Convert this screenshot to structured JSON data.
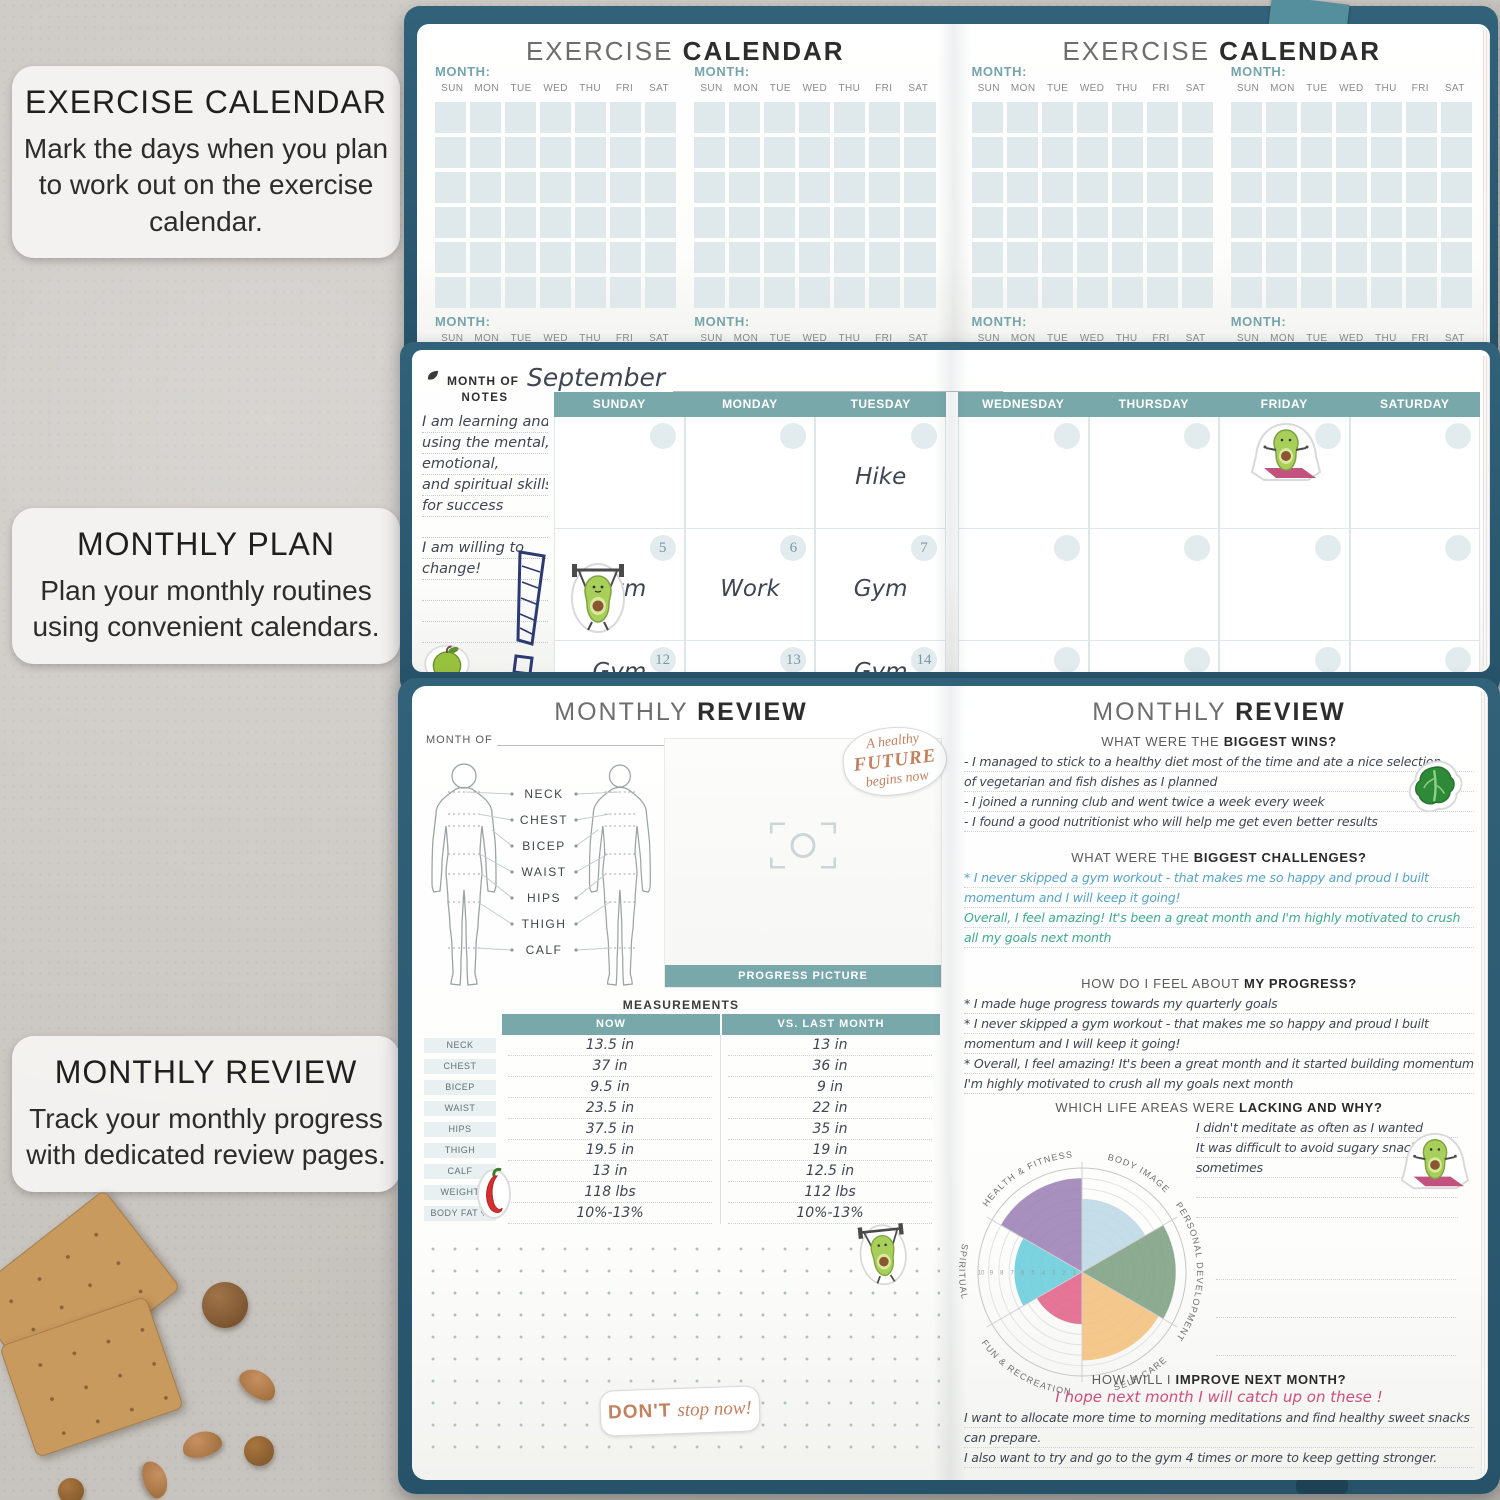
{
  "callouts": [
    {
      "title": "EXERCISE CALENDAR",
      "body": "Mark the days when you plan to work out on the exercise calendar."
    },
    {
      "title": "MONTHLY PLAN",
      "body": "Plan your monthly routines using convenient calendars."
    },
    {
      "title": "MONTHLY REVIEW",
      "body": "Track your monthly progress with dedicated review pages."
    }
  ],
  "exercise_spread": {
    "title_light": "EXERCISE",
    "title_bold": "CALENDAR",
    "month_label": "MONTH:",
    "day_headers": [
      "SUN",
      "MON",
      "TUE",
      "WED",
      "THU",
      "FRI",
      "SAT"
    ]
  },
  "plan_spread": {
    "month_of_label": "MONTH OF",
    "month_value": "September",
    "notes_label": "NOTES",
    "notes_lines": [
      "I am learning and",
      "using the mental,",
      "emotional,",
      "and spiritual skills",
      "for success",
      "",
      "I am willing to",
      "change!",
      "",
      "",
      ""
    ],
    "left_day_headers": [
      "SUNDAY",
      "MONDAY",
      "TUESDAY"
    ],
    "right_day_headers": [
      "WEDNESDAY",
      "THURSDAY",
      "FRIDAY",
      "SATURDAY"
    ],
    "left_rows": [
      {
        "dates": [
          "",
          "",
          ""
        ],
        "entries": [
          "",
          "",
          "Hike"
        ]
      },
      {
        "dates": [
          "5",
          "6",
          "7"
        ],
        "entries": [
          "Gym",
          "Work",
          "Gym"
        ]
      },
      {
        "dates": [
          "12",
          "13",
          "14"
        ],
        "entries": [
          "Gym",
          "",
          "Gym"
        ]
      }
    ]
  },
  "review_left": {
    "title_light": "MONTHLY",
    "title_bold": "REVIEW",
    "month_of_label": "MONTH OF",
    "body_part_labels": [
      "NECK",
      "CHEST",
      "BICEP",
      "WAIST",
      "HIPS",
      "THIGH",
      "CALF"
    ],
    "progress_picture_label": "PROGRESS PICTURE",
    "measurements_title": "MEASUREMENTS",
    "columns": {
      "now": "NOW",
      "vs": "VS. LAST MONTH"
    },
    "rows": [
      {
        "label": "NECK",
        "now": "13.5 in",
        "vs": "13 in"
      },
      {
        "label": "CHEST",
        "now": "37 in",
        "vs": "36 in"
      },
      {
        "label": "BICEP",
        "now": "9.5 in",
        "vs": "9 in"
      },
      {
        "label": "WAIST",
        "now": "23.5 in",
        "vs": "22 in"
      },
      {
        "label": "HIPS",
        "now": "37.5 in",
        "vs": "35 in"
      },
      {
        "label": "THIGH",
        "now": "19.5 in",
        "vs": "19 in"
      },
      {
        "label": "CALF",
        "now": "13 in",
        "vs": "12.5 in"
      },
      {
        "label": "WEIGHT",
        "now": "118 lbs",
        "vs": "112 lbs"
      },
      {
        "label": "BODY FAT %",
        "now": "10%-13%",
        "vs": "10%-13%"
      }
    ]
  },
  "review_right": {
    "title_light": "MONTHLY",
    "title_bold": "REVIEW",
    "wins": {
      "pre": "WHAT WERE THE ",
      "bold": "BIGGEST WINS?",
      "lines": [
        "- I managed to stick to a healthy diet most of the time and ate a nice selection",
        "of vegetarian and fish dishes as I planned",
        "- I joined a running club and went twice a week every week",
        "- I found a good nutritionist who will help me get even better results"
      ]
    },
    "challenges": {
      "pre": "WHAT WERE THE ",
      "bold": "BIGGEST CHALLENGES?",
      "blue_lines": [
        "* I never skipped a gym workout - that makes me so happy and proud I built",
        "momentum and I will keep it going!"
      ],
      "green_lines": [
        "Overall, I feel amazing! It's been a great month and I'm highly motivated to crush",
        "all my goals next month"
      ]
    },
    "progress": {
      "pre": "HOW DO I FEEL ABOUT ",
      "bold": "MY PROGRESS?",
      "lines": [
        "* I made huge progress towards my quarterly goals",
        "* I never skipped a gym workout - that makes me so happy and proud I built",
        "momentum and I will keep it going!",
        "* Overall, I feel amazing! It's been a great month and it started building momentum",
        "I'm highly motivated to crush all my goals next month"
      ]
    },
    "lacking": {
      "pre": "WHICH LIFE AREAS WERE ",
      "bold": "LACKING AND WHY?",
      "lines": [
        "I didn't meditate as often as I wanted",
        "It was difficult to avoid sugary snacks",
        "sometimes",
        "",
        ""
      ]
    },
    "improve": {
      "pre": "HOW WILL I ",
      "bold": "IMPROVE NEXT MONTH?",
      "highlight": "I hope next month I will catch up on these !",
      "lines": [
        "I want to allocate more time to morning meditations and find healthy sweet snacks that I",
        "can prepare.",
        "I also want to try and go to the gym 4 times or more to keep getting stronger."
      ]
    }
  },
  "stickers": {
    "healthy_future": [
      "A healthy",
      "FUTURE",
      "begins now"
    ],
    "dont_stop_caps": "DON'T",
    "dont_stop_script": "stop now!"
  },
  "chart_data": {
    "type": "wheel-of-life",
    "title": "WHICH LIFE AREAS WERE LACKING AND WHY?",
    "categories": [
      "HEALTH & FITNESS",
      "BODY IMAGE",
      "PERSONAL DEVELOPMENT",
      "SELF-CARE",
      "FUN & RECREATION",
      "SPIRITUAL"
    ],
    "values": [
      9,
      7,
      9,
      8.5,
      5,
      6.5
    ],
    "scale_max": 10,
    "scale_ticks": [
      10,
      9,
      8,
      7,
      6,
      5,
      4,
      3,
      2,
      1
    ],
    "colors": [
      "#9b80b5",
      "#bcd8e5",
      "#7d9f82",
      "#f2c07c",
      "#e06287",
      "#68cdda"
    ],
    "legend_position": "around",
    "grid": true
  }
}
